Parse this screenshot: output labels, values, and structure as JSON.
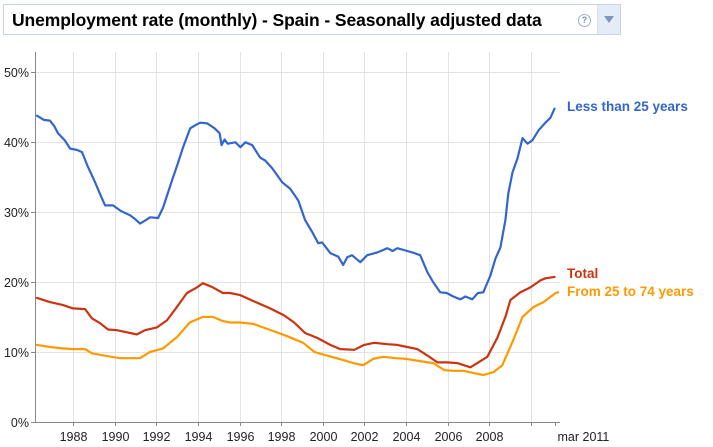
{
  "header": {
    "title": "Unemployment rate (monthly) - Spain - Seasonally adjusted data",
    "help_icon": "help-circle-icon",
    "help_glyph": "?",
    "dropdown_icon": "chevron-down-icon"
  },
  "colors": {
    "less_than_25": "#3366cc",
    "total": "#cc3311",
    "from_25_to_74": "#ff9900",
    "grid": "#e3e3e3",
    "axis": "#888888"
  },
  "chart_data": {
    "type": "line",
    "title": "Unemployment rate (monthly) - Spain - Seasonally adjusted data",
    "xlabel": "",
    "ylabel": "",
    "xlim": [
      1985.8,
      2011.3
    ],
    "ylim": [
      0,
      52
    ],
    "y_ticks": [
      0,
      10,
      20,
      30,
      40,
      50
    ],
    "y_tick_labels": [
      "0%",
      "10%",
      "20%",
      "30%",
      "40%",
      "50%"
    ],
    "x_ticks": [
      1988,
      1990,
      1992,
      1994,
      1996,
      1998,
      2000,
      2002,
      2004,
      2006,
      2008,
      2010
    ],
    "x_tick_labels": [
      "1988",
      "1990",
      "1992",
      "1994",
      "1996",
      "1998",
      "2000",
      "2002",
      "2004",
      "2006",
      "2008",
      ""
    ],
    "x_end_tick": 2011.17,
    "x_end_label": "mar 2011",
    "grid": true,
    "legend_placement": "right, at line ends",
    "series": [
      {
        "name": "Less than 25 years",
        "color": "#3366cc",
        "points": [
          [
            1986.27,
            43.7
          ],
          [
            1986.6,
            43.1
          ],
          [
            1986.89,
            43.0
          ],
          [
            1987.1,
            42.2
          ],
          [
            1987.28,
            41.2
          ],
          [
            1987.6,
            40.2
          ],
          [
            1987.86,
            39.0
          ],
          [
            1988.2,
            38.8
          ],
          [
            1988.43,
            38.5
          ],
          [
            1988.7,
            36.5
          ],
          [
            1989.06,
            34.2
          ],
          [
            1989.3,
            32.5
          ],
          [
            1989.54,
            30.9
          ],
          [
            1989.92,
            30.9
          ],
          [
            1990.3,
            30.1
          ],
          [
            1990.74,
            29.5
          ],
          [
            1991.0,
            28.9
          ],
          [
            1991.22,
            28.3
          ],
          [
            1991.5,
            28.8
          ],
          [
            1991.7,
            29.2
          ],
          [
            1992.09,
            29.1
          ],
          [
            1992.33,
            30.6
          ],
          [
            1992.55,
            32.6
          ],
          [
            1992.76,
            34.5
          ],
          [
            1993.05,
            37.0
          ],
          [
            1993.29,
            39.2
          ],
          [
            1993.63,
            41.9
          ],
          [
            1993.85,
            42.3
          ],
          [
            1994.11,
            42.7
          ],
          [
            1994.45,
            42.6
          ],
          [
            1994.8,
            41.9
          ],
          [
            1995.04,
            41.2
          ],
          [
            1995.14,
            39.5
          ],
          [
            1995.28,
            40.3
          ],
          [
            1995.43,
            39.7
          ],
          [
            1995.8,
            39.9
          ],
          [
            1996.04,
            39.2
          ],
          [
            1996.28,
            39.9
          ],
          [
            1996.61,
            39.5
          ],
          [
            1996.99,
            37.7
          ],
          [
            1997.23,
            37.3
          ],
          [
            1997.57,
            36.2
          ],
          [
            1998.05,
            34.2
          ],
          [
            1998.43,
            33.3
          ],
          [
            1998.82,
            31.6
          ],
          [
            1999.15,
            28.8
          ],
          [
            1999.49,
            27.1
          ],
          [
            1999.78,
            25.5
          ],
          [
            1999.97,
            25.6
          ],
          [
            2000.36,
            24.1
          ],
          [
            2000.74,
            23.6
          ],
          [
            2000.98,
            22.4
          ],
          [
            2001.17,
            23.5
          ],
          [
            2001.4,
            23.8
          ],
          [
            2001.8,
            22.8
          ],
          [
            2002.13,
            23.8
          ],
          [
            2002.62,
            24.2
          ],
          [
            2003.1,
            24.8
          ],
          [
            2003.35,
            24.4
          ],
          [
            2003.58,
            24.8
          ],
          [
            2004.06,
            24.4
          ],
          [
            2004.4,
            24.1
          ],
          [
            2004.68,
            23.8
          ],
          [
            2005.02,
            21.4
          ],
          [
            2005.31,
            19.9
          ],
          [
            2005.64,
            18.5
          ],
          [
            2005.95,
            18.4
          ],
          [
            2006.27,
            17.9
          ],
          [
            2006.61,
            17.5
          ],
          [
            2006.85,
            17.9
          ],
          [
            2007.18,
            17.5
          ],
          [
            2007.45,
            18.4
          ],
          [
            2007.71,
            18.5
          ],
          [
            2008.05,
            20.9
          ],
          [
            2008.29,
            23.3
          ],
          [
            2008.53,
            24.9
          ],
          [
            2008.77,
            28.8
          ],
          [
            2008.91,
            32.6
          ],
          [
            2009.11,
            35.6
          ],
          [
            2009.35,
            37.6
          ],
          [
            2009.59,
            40.5
          ],
          [
            2009.83,
            39.7
          ],
          [
            2010.07,
            40.2
          ],
          [
            2010.36,
            41.6
          ],
          [
            2010.69,
            42.7
          ],
          [
            2010.93,
            43.4
          ],
          [
            2011.13,
            44.7
          ]
        ]
      },
      {
        "name": "Total",
        "color": "#cc3311",
        "points": [
          [
            1986.27,
            17.7
          ],
          [
            1986.89,
            17.1
          ],
          [
            1987.5,
            16.7
          ],
          [
            1988.0,
            16.2
          ],
          [
            1988.58,
            16.1
          ],
          [
            1988.91,
            14.8
          ],
          [
            1989.3,
            14.1
          ],
          [
            1989.68,
            13.2
          ],
          [
            1990.11,
            13.1
          ],
          [
            1990.59,
            12.8
          ],
          [
            1991.07,
            12.5
          ],
          [
            1991.46,
            13.1
          ],
          [
            1992.03,
            13.5
          ],
          [
            1992.51,
            14.5
          ],
          [
            1992.99,
            16.4
          ],
          [
            1993.47,
            18.4
          ],
          [
            1993.95,
            19.2
          ],
          [
            1994.24,
            19.8
          ],
          [
            1994.72,
            19.2
          ],
          [
            1995.2,
            18.4
          ],
          [
            1995.54,
            18.4
          ],
          [
            1996.03,
            18.1
          ],
          [
            1996.85,
            17.0
          ],
          [
            1997.47,
            16.2
          ],
          [
            1998.14,
            15.2
          ],
          [
            1998.62,
            14.2
          ],
          [
            1999.15,
            12.7
          ],
          [
            1999.73,
            12.0
          ],
          [
            2000.36,
            11.0
          ],
          [
            2000.84,
            10.4
          ],
          [
            2001.51,
            10.3
          ],
          [
            2001.99,
            11.0
          ],
          [
            2002.47,
            11.3
          ],
          [
            2003.1,
            11.1
          ],
          [
            2003.58,
            11.0
          ],
          [
            2004.06,
            10.7
          ],
          [
            2004.54,
            10.4
          ],
          [
            2005.02,
            9.5
          ],
          [
            2005.5,
            8.5
          ],
          [
            2005.98,
            8.5
          ],
          [
            2006.46,
            8.4
          ],
          [
            2007.09,
            7.8
          ],
          [
            2007.42,
            8.4
          ],
          [
            2007.9,
            9.3
          ],
          [
            2008.38,
            12.0
          ],
          [
            2008.77,
            15.0
          ],
          [
            2009.01,
            17.4
          ],
          [
            2009.49,
            18.5
          ],
          [
            2009.97,
            19.2
          ],
          [
            2010.45,
            20.2
          ],
          [
            2010.69,
            20.5
          ],
          [
            2011.13,
            20.7
          ]
        ]
      },
      {
        "name": "From 25 to 74 years",
        "color": "#ff9900",
        "points": [
          [
            1986.27,
            11.0
          ],
          [
            1986.89,
            10.7
          ],
          [
            1987.5,
            10.5
          ],
          [
            1988.0,
            10.4
          ],
          [
            1988.58,
            10.4
          ],
          [
            1988.91,
            9.8
          ],
          [
            1989.63,
            9.4
          ],
          [
            1990.26,
            9.1
          ],
          [
            1990.74,
            9.1
          ],
          [
            1991.22,
            9.1
          ],
          [
            1991.7,
            10.0
          ],
          [
            1992.33,
            10.5
          ],
          [
            1992.99,
            12.1
          ],
          [
            1993.61,
            14.2
          ],
          [
            1994.24,
            15.0
          ],
          [
            1994.72,
            15.0
          ],
          [
            1995.2,
            14.4
          ],
          [
            1995.54,
            14.2
          ],
          [
            1996.03,
            14.2
          ],
          [
            1996.66,
            14.0
          ],
          [
            1997.42,
            13.2
          ],
          [
            1998.24,
            12.3
          ],
          [
            1999.06,
            11.3
          ],
          [
            1999.59,
            10.0
          ],
          [
            2000.17,
            9.5
          ],
          [
            2000.79,
            9.0
          ],
          [
            2001.46,
            8.4
          ],
          [
            2001.94,
            8.1
          ],
          [
            2002.42,
            9.0
          ],
          [
            2002.9,
            9.3
          ],
          [
            2003.53,
            9.1
          ],
          [
            2004.01,
            9.0
          ],
          [
            2004.63,
            8.7
          ],
          [
            2005.3,
            8.4
          ],
          [
            2005.83,
            7.4
          ],
          [
            2006.27,
            7.3
          ],
          [
            2006.75,
            7.3
          ],
          [
            2007.23,
            7.0
          ],
          [
            2007.71,
            6.7
          ],
          [
            2008.19,
            7.1
          ],
          [
            2008.62,
            8.1
          ],
          [
            2009.15,
            11.7
          ],
          [
            2009.59,
            15.0
          ],
          [
            2010.12,
            16.4
          ],
          [
            2010.6,
            17.1
          ],
          [
            2011.18,
            18.4
          ],
          [
            2011.3,
            18.5
          ]
        ]
      }
    ]
  },
  "legend": {
    "less_than_25": "Less than 25 years",
    "total": "Total",
    "from_25_to_74": "From 25 to 74 years"
  }
}
